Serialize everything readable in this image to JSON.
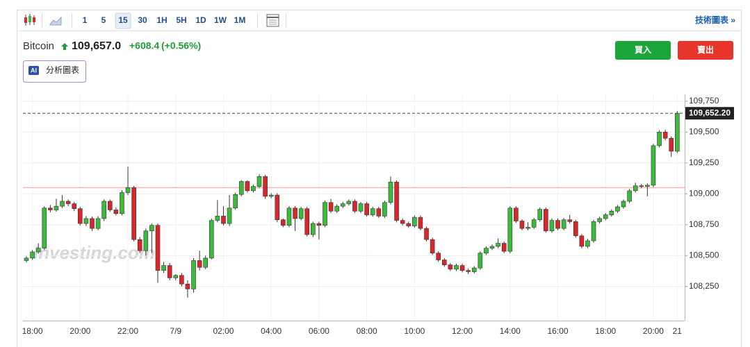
{
  "header": {
    "intervals": [
      "1",
      "5",
      "15",
      "30",
      "1H",
      "5H",
      "1D",
      "1W",
      "1M"
    ],
    "link": "技術圖表 »",
    "name": "Bitcoin",
    "price": "109,657.0",
    "change": "+608.4",
    "change_pct": "(+0.56%)",
    "ai_icon": "AI",
    "ai_button": "分析圖表",
    "buy": "買入",
    "sell": "賣出",
    "watermark": "Investing.com"
  },
  "chart_data": {
    "type": "candlestick",
    "categories": [
      null,
      "18:00",
      null,
      null,
      null,
      null,
      null,
      null,
      null,
      "20:00",
      null,
      null,
      null,
      null,
      null,
      null,
      null,
      "22:00",
      null,
      null,
      null,
      null,
      null,
      null,
      null,
      "7/9",
      null,
      null,
      null,
      null,
      null,
      null,
      null,
      "02:00",
      null,
      null,
      null,
      null,
      null,
      null,
      null,
      "04:00",
      null,
      null,
      null,
      null,
      null,
      null,
      null,
      "06:00",
      null,
      null,
      null,
      null,
      null,
      null,
      null,
      "08:00",
      null,
      null,
      null,
      null,
      null,
      null,
      null,
      "10:00",
      null,
      null,
      null,
      null,
      null,
      null,
      null,
      "12:00",
      null,
      null,
      null,
      null,
      null,
      null,
      null,
      "14:00",
      null,
      null,
      null,
      null,
      null,
      null,
      null,
      "16:00",
      null,
      null,
      null,
      null,
      null,
      null,
      null,
      "18:00",
      null,
      null,
      null,
      null,
      null,
      null,
      null,
      "20:00",
      null,
      null,
      null,
      "21"
    ],
    "series": [
      {
        "up_color": "#3cba3c",
        "down_color": "#d9262a",
        "open": [
          108460,
          108480,
          108530,
          108560,
          108885,
          108870,
          108900,
          108940,
          108920,
          108880,
          108760,
          108800,
          108720,
          108800,
          108940,
          108870,
          108840,
          109010,
          109050,
          108630,
          108540,
          108700,
          108745,
          108380,
          108420,
          108320,
          108340,
          108270,
          108230,
          108460,
          108405,
          108480,
          108785,
          108820,
          108760,
          108885,
          108995,
          109100,
          109025,
          109060,
          109140,
          108980,
          108990,
          108790,
          108745,
          108885,
          108800,
          108880,
          108670,
          108760,
          108745,
          108930,
          108860,
          108900,
          108920,
          108940,
          108860,
          108920,
          108830,
          108880,
          108820,
          108930,
          109095,
          108785,
          108760,
          108740,
          108810,
          108720,
          108630,
          108520,
          108465,
          108425,
          108390,
          108420,
          108380,
          108370,
          108400,
          108520,
          108560,
          108575,
          108600,
          108535,
          108885,
          108780,
          108720,
          108730,
          108790,
          108875,
          108700,
          108785,
          108720,
          108790,
          108775,
          108660,
          108575,
          108620,
          108775,
          108800,
          108830,
          108860,
          108895,
          108940,
          109025,
          109065,
          109060,
          109070,
          109390,
          109500,
          109450,
          109345
        ],
        "high": [
          108495,
          108545,
          108600,
          108900,
          108910,
          108960,
          108990,
          108955,
          108935,
          108895,
          108820,
          108815,
          108820,
          108955,
          108955,
          108890,
          109030,
          109220,
          109065,
          108650,
          108720,
          108760,
          108760,
          108450,
          108440,
          108350,
          108360,
          108300,
          108480,
          108540,
          108500,
          108800,
          108950,
          108900,
          108990,
          109010,
          109110,
          109110,
          109075,
          109160,
          109155,
          109005,
          109005,
          108800,
          108900,
          108900,
          108895,
          108895,
          108775,
          108775,
          108945,
          108960,
          108915,
          108935,
          108955,
          108955,
          108935,
          108935,
          108895,
          108895,
          108945,
          109140,
          109110,
          108800,
          108775,
          108825,
          108825,
          108735,
          108645,
          108535,
          108480,
          108440,
          108435,
          108435,
          108395,
          108415,
          108535,
          108575,
          108590,
          108640,
          108615,
          108900,
          108900,
          108795,
          108770,
          108805,
          108890,
          108890,
          108800,
          108800,
          108805,
          108830,
          108790,
          108675,
          108635,
          108790,
          108815,
          108845,
          108875,
          108910,
          108955,
          109040,
          109090,
          109080,
          109085,
          109405,
          109515,
          109520,
          109465,
          109670
        ],
        "low": [
          108445,
          108465,
          108515,
          108545,
          108850,
          108855,
          108885,
          108900,
          108860,
          108745,
          108740,
          108700,
          108705,
          108780,
          108855,
          108825,
          108825,
          108990,
          108615,
          108520,
          108500,
          108520,
          108280,
          108360,
          108300,
          108300,
          108250,
          108160,
          108200,
          108380,
          108390,
          108470,
          108770,
          108745,
          108740,
          108870,
          108980,
          109010,
          109010,
          109045,
          108960,
          108965,
          108770,
          108730,
          108730,
          108700,
          108785,
          108655,
          108650,
          108630,
          108730,
          108845,
          108845,
          108885,
          108905,
          108845,
          108845,
          108815,
          108815,
          108805,
          108805,
          108915,
          108770,
          108745,
          108725,
          108725,
          108705,
          108615,
          108505,
          108450,
          108410,
          108375,
          108375,
          108365,
          108350,
          108355,
          108385,
          108505,
          108545,
          108560,
          108520,
          108520,
          108765,
          108705,
          108705,
          108715,
          108775,
          108685,
          108685,
          108705,
          108705,
          108760,
          108645,
          108560,
          108560,
          108605,
          108760,
          108785,
          108815,
          108845,
          108880,
          108925,
          109010,
          109045,
          108980,
          109055,
          109375,
          109435,
          109300,
          109330
        ],
        "close": [
          108480,
          108530,
          108560,
          108885,
          108870,
          108900,
          108940,
          108920,
          108880,
          108760,
          108800,
          108720,
          108800,
          108940,
          108870,
          108840,
          109010,
          109050,
          108630,
          108540,
          108700,
          108745,
          108380,
          108420,
          108320,
          108340,
          108270,
          108230,
          108460,
          108405,
          108480,
          108785,
          108820,
          108760,
          108885,
          108995,
          109100,
          109025,
          109060,
          109140,
          108980,
          108990,
          108790,
          108745,
          108885,
          108800,
          108880,
          108670,
          108760,
          108745,
          108930,
          108860,
          108900,
          108920,
          108940,
          108860,
          108920,
          108830,
          108880,
          108820,
          108930,
          109095,
          108785,
          108760,
          108740,
          108810,
          108720,
          108630,
          108520,
          108465,
          108425,
          108390,
          108420,
          108380,
          108370,
          108400,
          108520,
          108560,
          108575,
          108600,
          108535,
          108885,
          108780,
          108720,
          108730,
          108790,
          108875,
          108700,
          108785,
          108720,
          108790,
          108775,
          108660,
          108575,
          108620,
          108775,
          108800,
          108830,
          108860,
          108895,
          108940,
          109025,
          109065,
          109060,
          109070,
          109390,
          109500,
          109450,
          109345,
          109652.2
        ]
      }
    ],
    "price_line": {
      "value": 109652.2,
      "label": "109,652.20"
    },
    "reference_line": 109050,
    "ylim": [
      107985,
      109805
    ],
    "yticks": [
      {
        "value": 108250,
        "label": "108,250"
      },
      {
        "value": 108500,
        "label": "108,500"
      },
      {
        "value": 108750,
        "label": "108,750"
      },
      {
        "value": 109000,
        "label": "109,000"
      },
      {
        "value": 109250,
        "label": "109,250"
      },
      {
        "value": 109500,
        "label": "109,500"
      },
      {
        "value": 109750,
        "label": "109,750"
      }
    ],
    "grid": true
  }
}
